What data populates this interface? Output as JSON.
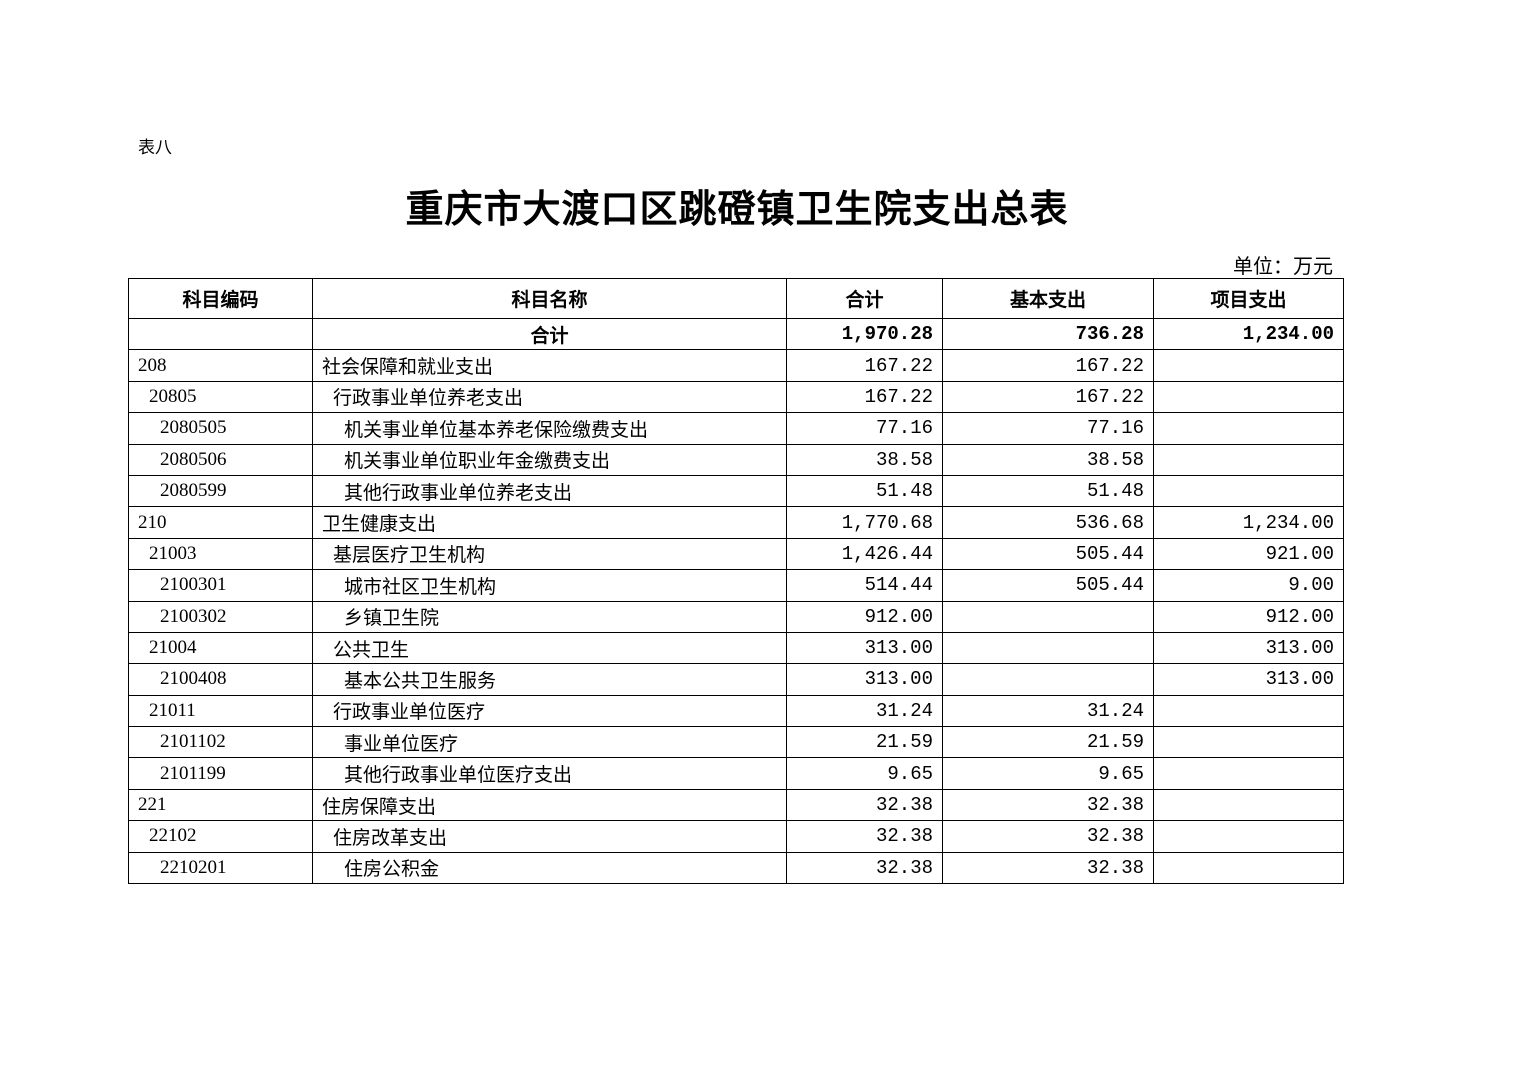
{
  "doc": {
    "label": "表八",
    "title": "重庆市大渡口区跳磴镇卫生院支出总表",
    "unit": "单位：万元"
  },
  "table": {
    "headers": [
      "科目编码",
      "科目名称",
      "合计",
      "基本支出",
      "项目支出"
    ],
    "total": {
      "code": "",
      "name": "合计",
      "total": "1,970.28",
      "basic": "736.28",
      "project": "1,234.00"
    },
    "rows": [
      {
        "level": 0,
        "code": "208",
        "name": "社会保障和就业支出",
        "total": "167.22",
        "basic": "167.22",
        "project": ""
      },
      {
        "level": 1,
        "code": "20805",
        "name": "行政事业单位养老支出",
        "total": "167.22",
        "basic": "167.22",
        "project": ""
      },
      {
        "level": 2,
        "code": "2080505",
        "name": "机关事业单位基本养老保险缴费支出",
        "total": "77.16",
        "basic": "77.16",
        "project": ""
      },
      {
        "level": 2,
        "code": "2080506",
        "name": "机关事业单位职业年金缴费支出",
        "total": "38.58",
        "basic": "38.58",
        "project": ""
      },
      {
        "level": 2,
        "code": "2080599",
        "name": "其他行政事业单位养老支出",
        "total": "51.48",
        "basic": "51.48",
        "project": ""
      },
      {
        "level": 0,
        "code": "210",
        "name": "卫生健康支出",
        "total": "1,770.68",
        "basic": "536.68",
        "project": "1,234.00"
      },
      {
        "level": 1,
        "code": "21003",
        "name": "基层医疗卫生机构",
        "total": "1,426.44",
        "basic": "505.44",
        "project": "921.00"
      },
      {
        "level": 2,
        "code": "2100301",
        "name": "城市社区卫生机构",
        "total": "514.44",
        "basic": "505.44",
        "project": "9.00"
      },
      {
        "level": 2,
        "code": "2100302",
        "name": "乡镇卫生院",
        "total": "912.00",
        "basic": "",
        "project": "912.00"
      },
      {
        "level": 1,
        "code": "21004",
        "name": "公共卫生",
        "total": "313.00",
        "basic": "",
        "project": "313.00"
      },
      {
        "level": 2,
        "code": "2100408",
        "name": "基本公共卫生服务",
        "total": "313.00",
        "basic": "",
        "project": "313.00"
      },
      {
        "level": 1,
        "code": "21011",
        "name": "行政事业单位医疗",
        "total": "31.24",
        "basic": "31.24",
        "project": ""
      },
      {
        "level": 2,
        "code": "2101102",
        "name": "事业单位医疗",
        "total": "21.59",
        "basic": "21.59",
        "project": ""
      },
      {
        "level": 2,
        "code": "2101199",
        "name": "其他行政事业单位医疗支出",
        "total": "9.65",
        "basic": "9.65",
        "project": ""
      },
      {
        "level": 0,
        "code": "221",
        "name": "住房保障支出",
        "total": "32.38",
        "basic": "32.38",
        "project": ""
      },
      {
        "level": 1,
        "code": "22102",
        "name": "住房改革支出",
        "total": "32.38",
        "basic": "32.38",
        "project": ""
      },
      {
        "level": 2,
        "code": "2210201",
        "name": "住房公积金",
        "total": "32.38",
        "basic": "32.38",
        "project": ""
      }
    ]
  }
}
